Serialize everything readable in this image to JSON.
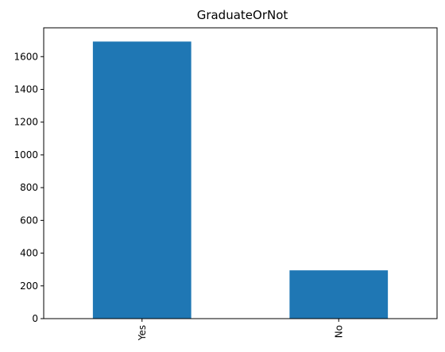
{
  "chart_data": {
    "type": "bar",
    "title": "GraduateOrNot",
    "categories": [
      "Yes",
      "No"
    ],
    "values": [
      1692,
      295
    ],
    "xlabel": "",
    "ylabel": "",
    "ylim": [
      0,
      1776
    ],
    "yticks": [
      0,
      200,
      400,
      600,
      800,
      1000,
      1200,
      1400,
      1600
    ],
    "bar_color": "#1f77b4",
    "grid": false,
    "legend": "none",
    "x_tick_rotation": "vertical"
  }
}
